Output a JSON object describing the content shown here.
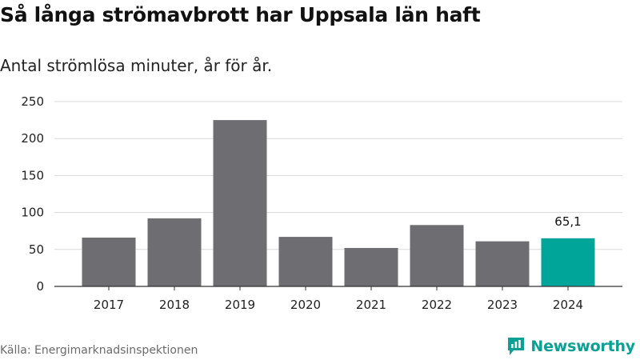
{
  "header": {
    "title": "Så långa strömavbrott har Uppsala län haft",
    "subtitle": "Antal strömlösa minuter, år för år."
  },
  "footer": {
    "source": "Källa: Energimarknadsinspektionen",
    "logo_text": "Newsworthy"
  },
  "colors": {
    "bar_default": "#6e6d72",
    "bar_highlight": "#00a599",
    "grid": "#d9d9d9",
    "axis": "#333333",
    "brand": "#0aa094"
  },
  "chart_data": {
    "type": "bar",
    "title": "Så långa strömavbrott har Uppsala län haft",
    "subtitle": "Antal strömlösa minuter, år för år.",
    "categories": [
      "2017",
      "2018",
      "2019",
      "2020",
      "2021",
      "2022",
      "2023",
      "2024"
    ],
    "values": [
      66,
      92,
      225,
      67,
      52,
      83,
      61,
      65.1
    ],
    "highlight_index": 7,
    "data_labels": [
      "",
      "",
      "",
      "",
      "",
      "",
      "",
      "65,1"
    ],
    "xlabel": "",
    "ylabel": "",
    "ylim": [
      0,
      250
    ],
    "yticks": [
      0,
      50,
      100,
      150,
      200,
      250
    ],
    "grid": true
  }
}
